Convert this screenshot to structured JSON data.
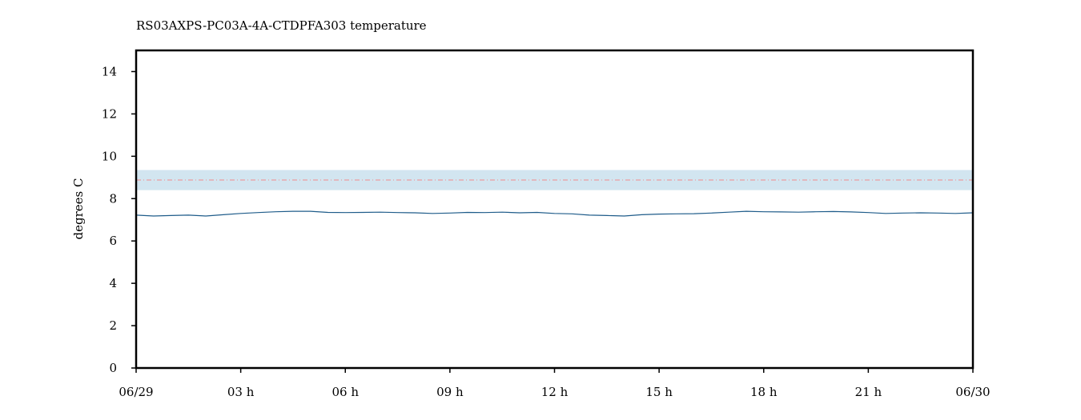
{
  "chart_data": {
    "type": "line",
    "title": "RS03AXPS-PC03A-4A-CTDPFA303 temperature",
    "xlabel": "",
    "ylabel": "degrees C",
    "xlim": [
      0,
      24
    ],
    "ylim": [
      0,
      15
    ],
    "x_ticks": [
      {
        "value": 0,
        "label": "06/29"
      },
      {
        "value": 3,
        "label": "03 h"
      },
      {
        "value": 6,
        "label": "06 h"
      },
      {
        "value": 9,
        "label": "09 h"
      },
      {
        "value": 12,
        "label": "12 h"
      },
      {
        "value": 15,
        "label": "15 h"
      },
      {
        "value": 18,
        "label": "18 h"
      },
      {
        "value": 21,
        "label": "21 h"
      },
      {
        "value": 24,
        "label": "06/30"
      }
    ],
    "y_ticks": [
      {
        "value": 0,
        "label": "0"
      },
      {
        "value": 2,
        "label": "2"
      },
      {
        "value": 4,
        "label": "4"
      },
      {
        "value": 6,
        "label": "6"
      },
      {
        "value": 8,
        "label": "8"
      },
      {
        "value": 10,
        "label": "10"
      },
      {
        "value": 12,
        "label": "12"
      },
      {
        "value": 14,
        "label": "14"
      }
    ],
    "grid": false,
    "band": {
      "y_min": 8.4,
      "y_max": 9.35,
      "color": "#d2e5f0"
    },
    "reference_line": {
      "y": 8.88,
      "color": "#f08c8c",
      "style": "dash-dot"
    },
    "series": [
      {
        "color": "#1f5c8a",
        "x": [
          0,
          0.5,
          1,
          1.5,
          2,
          2.5,
          3,
          3.5,
          4,
          4.5,
          5,
          5.5,
          6,
          6.5,
          7,
          7.5,
          8,
          8.5,
          9,
          9.5,
          10,
          10.5,
          11,
          11.5,
          12,
          12.5,
          13,
          13.5,
          14,
          14.5,
          15,
          15.5,
          16,
          16.5,
          17,
          17.5,
          18,
          18.5,
          19,
          19.5,
          20,
          20.5,
          21,
          21.5,
          22,
          22.5,
          23,
          23.5,
          24
        ],
        "y": [
          7.22,
          7.18,
          7.2,
          7.22,
          7.18,
          7.24,
          7.3,
          7.34,
          7.38,
          7.4,
          7.4,
          7.35,
          7.34,
          7.35,
          7.36,
          7.34,
          7.33,
          7.3,
          7.32,
          7.35,
          7.34,
          7.36,
          7.33,
          7.35,
          7.3,
          7.28,
          7.22,
          7.2,
          7.18,
          7.24,
          7.27,
          7.28,
          7.29,
          7.32,
          7.36,
          7.4,
          7.38,
          7.37,
          7.36,
          7.38,
          7.39,
          7.37,
          7.34,
          7.3,
          7.32,
          7.33,
          7.32,
          7.3,
          7.33
        ]
      }
    ]
  }
}
